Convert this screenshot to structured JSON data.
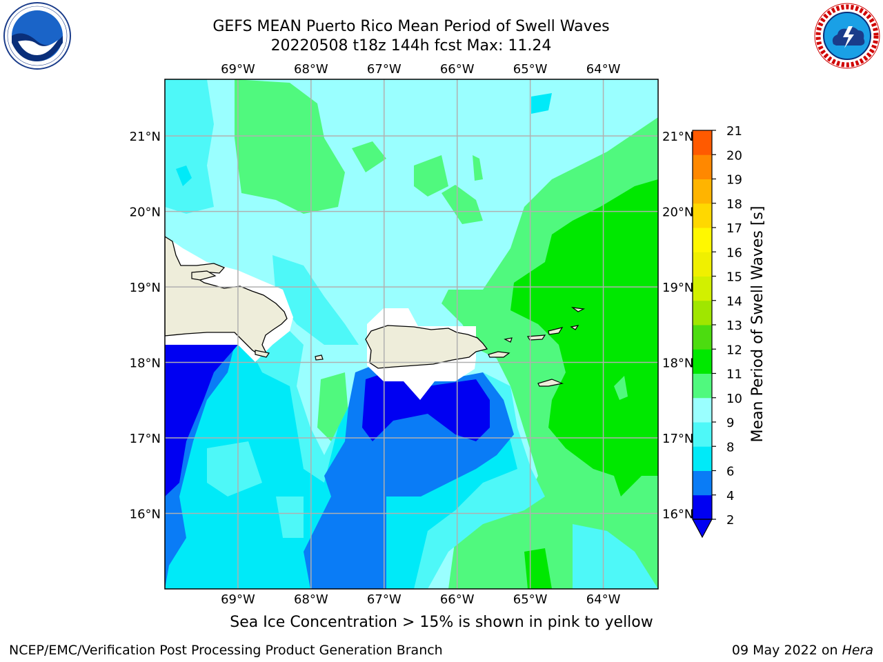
{
  "title": {
    "line1": "GEFS MEAN Puerto Rico Mean Period of Swell Waves",
    "line2": "20220508 t18z 144h fcst   Max: 11.24"
  },
  "logos": {
    "left": "noaa-logo",
    "right": "national-weather-service-logo"
  },
  "map": {
    "lon_labels": [
      "69°W",
      "68°W",
      "67°W",
      "66°W",
      "65°W",
      "64°W"
    ],
    "lat_labels": [
      "21°N",
      "20°N",
      "19°N",
      "18°N",
      "17°N",
      "16°N"
    ],
    "lon_values": [
      -69,
      -68,
      -67,
      -66,
      -65,
      -64
    ],
    "lat_values": [
      21,
      20,
      19,
      18,
      17,
      16
    ],
    "extent": {
      "lon_min": -70.0,
      "lon_max": -63.25,
      "lat_min": 15.0,
      "lat_max": 21.75
    },
    "land_color": "#eeedda",
    "grid_color": "#b0b0b0"
  },
  "colorbar": {
    "label": "Mean Period of Swell Waves [s]",
    "ticks": [
      "2",
      "4",
      "6",
      "8",
      "9",
      "10",
      "11",
      "12",
      "13",
      "14",
      "15",
      "16",
      "17",
      "18",
      "19",
      "20",
      "21"
    ],
    "colors": [
      "#0000f2",
      "#0a7cf6",
      "#00eaf8",
      "#4ef8f8",
      "#9affff",
      "#50f97e",
      "#00e800",
      "#4cdc10",
      "#a0e600",
      "#d2f000",
      "#f0f000",
      "#fff800",
      "#ffd800",
      "#ffb400",
      "#ff8800",
      "#ff5a00",
      "#ff2a00",
      "#ff0000"
    ],
    "under_color": "#0000f2"
  },
  "footer": {
    "ice_note": "Sea Ice Concentration > 15% is shown in pink to yellow",
    "left": "NCEP/EMC/Verification Post Processing Product Generation Branch",
    "date": "09 May 2022 on",
    "host": "Hera"
  }
}
